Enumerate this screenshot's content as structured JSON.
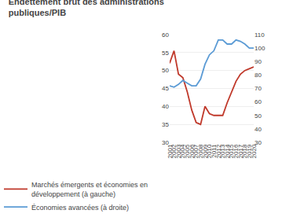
{
  "chart_data": {
    "type": "line",
    "title": "Endettement brut des administrations\npubliques/PIB",
    "x": [
      2001,
      2002,
      2003,
      2004,
      2005,
      2006,
      2007,
      2008,
      2009,
      2010,
      2011,
      2012,
      2013,
      2014,
      2015,
      2016,
      2017,
      2018,
      2019,
      2020
    ],
    "series": [
      {
        "name": "Marchés émergents et économies en\ndéveloppement (à gauche)",
        "color": "#c0392b",
        "axis": "y",
        "values": [
          52,
          55.5,
          49,
          48,
          44,
          39,
          35.5,
          35,
          40,
          38,
          37.5,
          37.5,
          37.5,
          41,
          44,
          47,
          49,
          50,
          50.5,
          51
        ]
      },
      {
        "name": "Économies avancées (à droite)",
        "color": "#5b9bd5",
        "axis": "y2",
        "values": [
          72,
          71,
          73,
          76,
          74,
          72,
          72,
          77,
          88,
          95,
          98,
          106,
          106,
          103,
          103,
          106,
          105,
          103,
          100,
          100
        ]
      }
    ],
    "xlim": [
      2001,
      2020
    ],
    "xticks": [
      2001,
      2002,
      2003,
      2004,
      2005,
      2006,
      2007,
      2008,
      2009,
      2010,
      2011,
      2012,
      2013,
      2014,
      2015,
      2016,
      2017,
      2018,
      2019,
      2020
    ],
    "ylim": [
      30,
      60
    ],
    "yticks": [
      30,
      35,
      40,
      45,
      50,
      55,
      60
    ],
    "y2lim": [
      30,
      110
    ],
    "y2ticks": [
      30,
      40,
      50,
      60,
      70,
      80,
      90,
      100,
      110
    ],
    "grid": true,
    "legend": "lower left"
  }
}
